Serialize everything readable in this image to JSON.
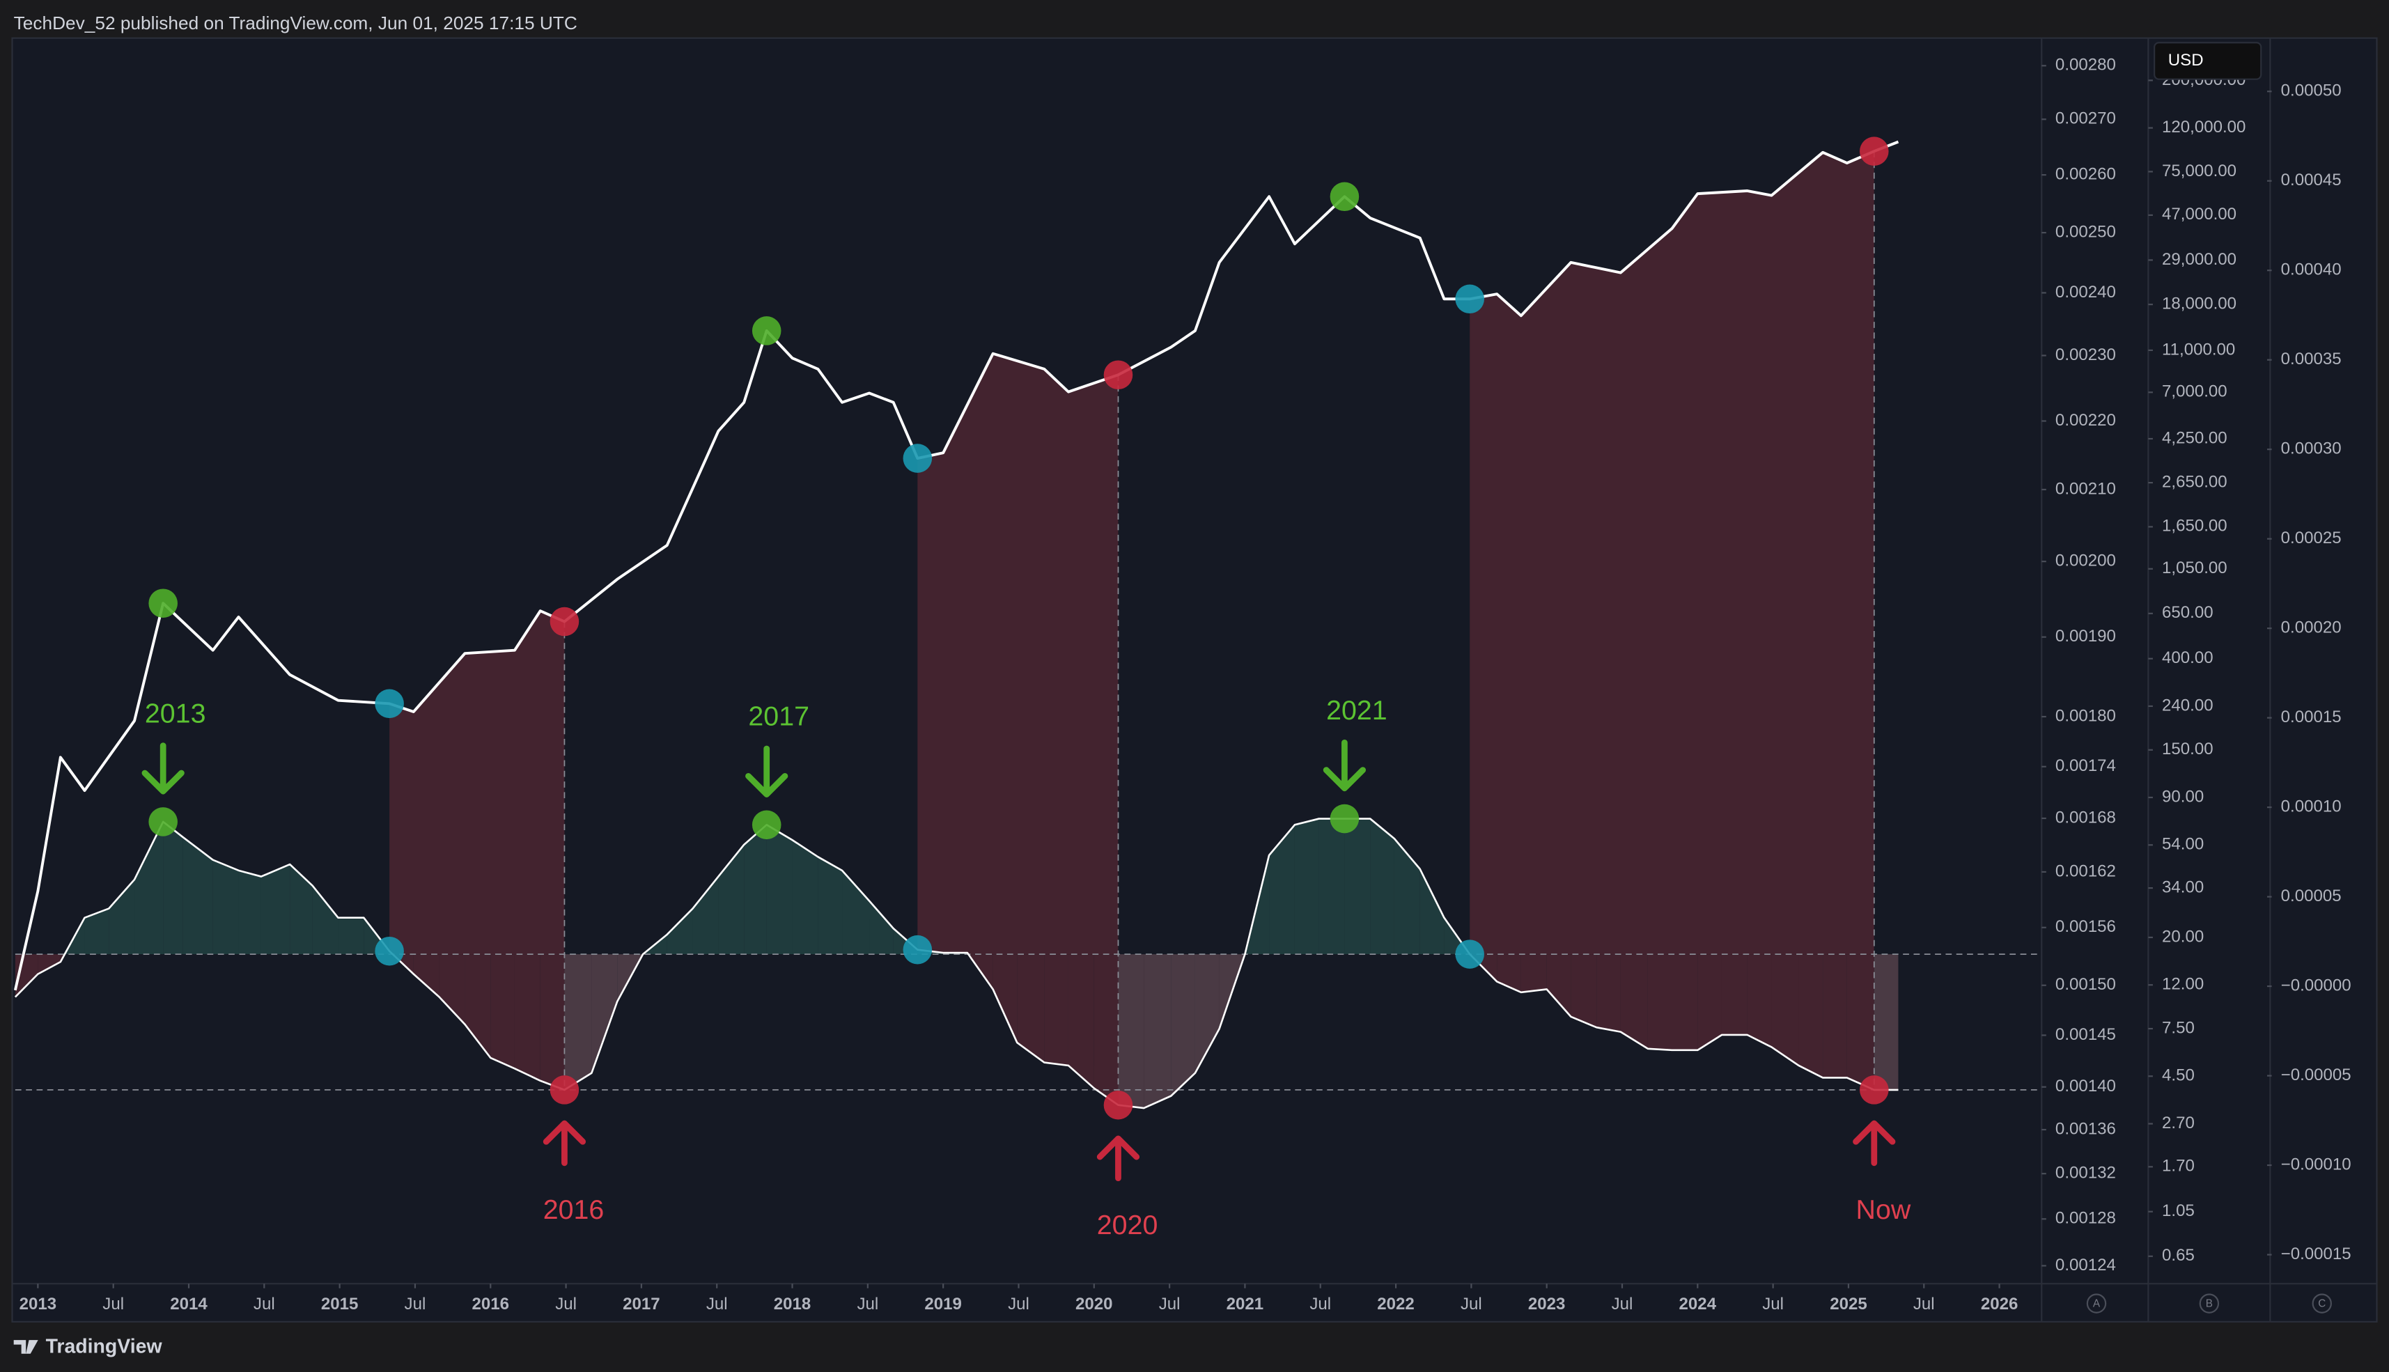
{
  "chart_data": {
    "type": "line",
    "header": "TechDev_52 published on TradingView.com, Jun 01, 2025 17:15 UTC",
    "brand": "TradingView",
    "currency": "USD",
    "axis_letters": [
      "A",
      "B",
      "C"
    ],
    "xlim": [
      2012.85,
      2026.28
    ],
    "xticks": [
      2013,
      {
        "value": 2013.5,
        "label": "Jul"
      },
      2014,
      {
        "value": 2014.5,
        "label": "Jul"
      },
      2015,
      {
        "value": 2015.5,
        "label": "Jul"
      },
      2016,
      {
        "value": 2016.5,
        "label": "Jul"
      },
      2017,
      {
        "value": 2017.5,
        "label": "Jul"
      },
      2018,
      {
        "value": 2018.5,
        "label": "Jul"
      },
      2019,
      {
        "value": 2019.5,
        "label": "Jul"
      },
      2020,
      {
        "value": 2020.5,
        "label": "Jul"
      },
      2021,
      {
        "value": 2021.5,
        "label": "Jul"
      },
      2022,
      {
        "value": 2022.5,
        "label": "Jul"
      },
      2023,
      {
        "value": 2023.5,
        "label": "Jul"
      },
      2024,
      {
        "value": 2024.5,
        "label": "Jul"
      },
      2025,
      {
        "value": 2025.5,
        "label": "Jul"
      },
      2026
    ],
    "yscale": "log",
    "ylim": [
      0.001225,
      0.002853
    ],
    "yticks": [
      {
        "value": 0.0028,
        "label": "0.00280"
      },
      {
        "value": 0.0027,
        "label": "0.00270"
      },
      {
        "value": 0.0026,
        "label": "0.00260"
      },
      {
        "value": 0.0025,
        "label": "0.00250"
      },
      {
        "value": 0.0024,
        "label": "0.00240"
      },
      {
        "value": 0.0023,
        "label": "0.00230"
      },
      {
        "value": 0.0022,
        "label": "0.00220"
      },
      {
        "value": 0.0021,
        "label": "0.00210"
      },
      {
        "value": 0.002,
        "label": "0.00200"
      },
      {
        "value": 0.0019,
        "label": "0.00190"
      },
      {
        "value": 0.0018,
        "label": "0.00180"
      },
      {
        "value": 0.00174,
        "label": "0.00174"
      },
      {
        "value": 0.00168,
        "label": "0.00168"
      },
      {
        "value": 0.00162,
        "label": "0.00162"
      },
      {
        "value": 0.00156,
        "label": "0.00156"
      },
      {
        "value": 0.0015,
        "label": "0.00150"
      },
      {
        "value": 0.00145,
        "label": "0.00145"
      },
      {
        "value": 0.0014,
        "label": "0.00140"
      },
      {
        "value": 0.00136,
        "label": "0.00136"
      },
      {
        "value": 0.00132,
        "label": "0.00132"
      },
      {
        "value": 0.00128,
        "label": "0.00128"
      },
      {
        "value": 0.00124,
        "label": "0.00124"
      }
    ],
    "price_axis": {
      "scale": "log",
      "ylim": [
        0.484,
        315100
      ],
      "yticks": [
        {
          "value": 200000,
          "label": "200,000.00"
        },
        {
          "value": 120000,
          "label": "120,000.00"
        },
        {
          "value": 75000,
          "label": "75,000.00"
        },
        {
          "value": 47000,
          "label": "47,000.00"
        },
        {
          "value": 29000,
          "label": "29,000.00"
        },
        {
          "value": 18000,
          "label": "18,000.00"
        },
        {
          "value": 11000,
          "label": "11,000.00"
        },
        {
          "value": 7000,
          "label": "7,000.00"
        },
        {
          "value": 4250,
          "label": "4,250.00"
        },
        {
          "value": 2650,
          "label": "2,650.00"
        },
        {
          "value": 1650,
          "label": "1,650.00"
        },
        {
          "value": 1050,
          "label": "1,050.00"
        },
        {
          "value": 650,
          "label": "650.00"
        },
        {
          "value": 400,
          "label": "400.00"
        },
        {
          "value": 240,
          "label": "240.00"
        },
        {
          "value": 150,
          "label": "150.00"
        },
        {
          "value": 90,
          "label": "90.00"
        },
        {
          "value": 54,
          "label": "54.00"
        },
        {
          "value": 34,
          "label": "34.00"
        },
        {
          "value": 20,
          "label": "20.00"
        },
        {
          "value": 12,
          "label": "12.00"
        },
        {
          "value": 7.5,
          "label": "7.50"
        },
        {
          "value": 4.5,
          "label": "4.50"
        },
        {
          "value": 2.7,
          "label": "2.70"
        },
        {
          "value": 1.7,
          "label": "1.70"
        },
        1.05,
        0.65
      ]
    },
    "y2lim": [
      -0.0001662,
      0.0005298
    ],
    "y2ticks": [
      {
        "value": 0.0005,
        "label": "0.00050"
      },
      {
        "value": 0.00045,
        "label": "0.00045"
      },
      {
        "value": 0.0004,
        "label": "0.00040"
      },
      {
        "value": 0.00035,
        "label": "0.00035"
      },
      {
        "value": 0.0003,
        "label": "0.00030"
      },
      {
        "value": 0.00025,
        "label": "0.00025"
      },
      {
        "value": 0.0002,
        "label": "0.00020"
      },
      {
        "value": 0.00015,
        "label": "0.00015"
      },
      {
        "value": 0.0001,
        "label": "0.00010"
      },
      {
        "value": 5e-05,
        "label": "0.00005"
      },
      {
        "value": 0,
        "label": "−0.00000"
      },
      {
        "value": -5e-05,
        "label": "−0.00005"
      },
      {
        "value": -0.0001,
        "label": "−0.00010"
      },
      {
        "value": -0.00015,
        "label": "−0.00015"
      }
    ],
    "hlines": {
      "axis": "y2",
      "color": "#8a8d96",
      "values": [
        1.79e-05,
        -5.79e-05
      ]
    },
    "series": [
      {
        "color": "#ffffff",
        "band_color": "#43232f",
        "bands": [
          [
            10,
            15
          ],
          [
            26,
            31
          ],
          [
            41,
            52
          ]
        ],
        "x": [
          2012.85,
          2013.0,
          2013.15,
          2013.31,
          2013.64,
          2013.83,
          2014.16,
          2014.33,
          2014.67,
          2014.99,
          2015.33,
          2015.49,
          2015.83,
          2016.16,
          2016.33,
          2016.49,
          2016.84,
          2017.17,
          2017.51,
          2017.68,
          2017.83,
          2018.0,
          2018.17,
          2018.33,
          2018.51,
          2018.67,
          2018.83,
          2019.0,
          2019.33,
          2019.67,
          2019.83,
          2020.16,
          2020.51,
          2020.67,
          2020.83,
          2021.16,
          2021.33,
          2021.66,
          2021.83,
          2022.16,
          2022.32,
          2022.49,
          2022.67,
          2022.83,
          2023.16,
          2023.49,
          2023.83,
          2024.0,
          2024.33,
          2024.49,
          2024.83,
          2024.99,
          2025.17,
          2025.33
        ],
        "values": [
          0.001495,
          0.001599,
          0.001751,
          0.001712,
          0.001795,
          0.001944,
          0.001883,
          0.001926,
          0.001852,
          0.00182,
          0.001816,
          0.001806,
          0.001879,
          0.001883,
          0.001934,
          0.00192,
          0.001976,
          0.002022,
          0.002185,
          0.002228,
          0.002339,
          0.002296,
          0.002279,
          0.002228,
          0.002242,
          0.002228,
          0.002145,
          0.002153,
          0.002303,
          0.002279,
          0.002244,
          0.00227,
          0.002313,
          0.002339,
          0.00245,
          0.002562,
          0.002481,
          0.002562,
          0.002525,
          0.002491,
          0.00239,
          0.00239,
          0.002398,
          0.002363,
          0.00245,
          0.002433,
          0.002507,
          0.002567,
          0.002572,
          0.002564,
          0.00264,
          0.002621,
          0.002642,
          0.002659
        ],
        "markers": [
          {
            "at": 5,
            "color": "#4fae2a"
          },
          {
            "at": 10,
            "color": "#1a98b0"
          },
          {
            "at": 15,
            "color": "#c8283d"
          },
          {
            "at": 20,
            "color": "#4fae2a"
          },
          {
            "at": 26,
            "color": "#1a98b0"
          },
          {
            "at": 31,
            "color": "#c8283d"
          },
          {
            "at": 37,
            "color": "#4fae2a"
          },
          {
            "at": 41,
            "color": "#1a98b0"
          },
          {
            "at": 52,
            "color": "#c8283d"
          }
        ]
      },
      {
        "color": "#ffffff",
        "axis": "y2",
        "fills": {
          "above": "#1f3b3d",
          "below": "#43232f",
          "recovery": "#4a3a44"
        },
        "x": [
          2012.85,
          2013.0,
          2013.15,
          2013.31,
          2013.47,
          2013.64,
          2013.83,
          2013.96,
          2014.16,
          2014.33,
          2014.48,
          2014.67,
          2014.82,
          2014.99,
          2015.16,
          2015.33,
          2015.49,
          2015.66,
          2015.83,
          2016.0,
          2016.16,
          2016.33,
          2016.49,
          2016.67,
          2016.84,
          2017.01,
          2017.17,
          2017.34,
          2017.51,
          2017.68,
          2017.83,
          2018.0,
          2018.17,
          2018.33,
          2018.51,
          2018.67,
          2018.83,
          2019.0,
          2019.16,
          2019.33,
          2019.49,
          2019.67,
          2019.83,
          2020.0,
          2020.16,
          2020.33,
          2020.51,
          2020.67,
          2020.83,
          2021.0,
          2021.16,
          2021.33,
          2021.49,
          2021.66,
          2021.83,
          2021.99,
          2022.16,
          2022.32,
          2022.49,
          2022.67,
          2022.83,
          2023.0,
          2023.16,
          2023.33,
          2023.49,
          2023.67,
          2023.83,
          2024.0,
          2024.16,
          2024.33,
          2024.49,
          2024.67,
          2024.83,
          2024.99,
          2025.17,
          2025.33
        ],
        "values": [
          -6e-06,
          6.8e-06,
          1.36e-05,
          3.83e-05,
          4.34e-05,
          5.96e-05,
          9.19e-05,
          8.34e-05,
          7.06e-05,
          6.47e-05,
          6.13e-05,
          6.81e-05,
          5.62e-05,
          3.83e-05,
          3.83e-05,
          1.96e-05,
          6.8e-06,
          -6e-06,
          -2.13e-05,
          -4e-05,
          -4.6e-05,
          -5.28e-05,
          -5.79e-05,
          -4.85e-05,
          -8.5e-06,
          1.79e-05,
          2.89e-05,
          4.34e-05,
          6.13e-05,
          7.91e-05,
          9.02e-05,
          8.17e-05,
          7.23e-05,
          6.47e-05,
          4.77e-05,
          3.23e-05,
          2.04e-05,
          1.87e-05,
          1.87e-05,
          -1.7e-06,
          -3.15e-05,
          -4.26e-05,
          -4.43e-05,
          -5.7e-05,
          -6.64e-05,
          -6.81e-05,
          -6.13e-05,
          -4.85e-05,
          -2.38e-05,
          1.79e-05,
          7.32e-05,
          9.02e-05,
          9.36e-05,
          9.36e-05,
          9.36e-05,
          8.25e-05,
          6.55e-05,
          3.83e-05,
          1.79e-05,
          2.6e-06,
          -3.4e-06,
          -1.7e-06,
          -1.7e-05,
          -2.3e-05,
          -2.55e-05,
          -3.49e-05,
          -3.57e-05,
          -3.57e-05,
          -2.72e-05,
          -2.72e-05,
          -3.4e-05,
          -4.43e-05,
          -5.11e-05,
          -5.11e-05,
          -5.79e-05,
          -5.79e-05
        ],
        "markers": [
          {
            "at": 6,
            "color": "#4fae2a",
            "label": "2013",
            "label_color": "#5cc332"
          },
          {
            "at": 15,
            "color": "#1a98b0"
          },
          {
            "at": 22,
            "color": "#c8283d",
            "label": "2016",
            "label_color": "#e0404f"
          },
          {
            "at": 30,
            "color": "#4fae2a",
            "label": "2017",
            "label_color": "#5cc332"
          },
          {
            "at": 36,
            "color": "#1a98b0"
          },
          {
            "at": 44,
            "color": "#c8283d",
            "label": "2020",
            "label_color": "#e0404f"
          },
          {
            "at": 53,
            "color": "#4fae2a",
            "label": "2021",
            "label_color": "#5cc332"
          },
          {
            "at": 58,
            "color": "#1a98b0"
          },
          {
            "at": 74,
            "color": "#c8283d",
            "label": "Now",
            "label_color": "#e0404f"
          }
        ]
      }
    ]
  }
}
